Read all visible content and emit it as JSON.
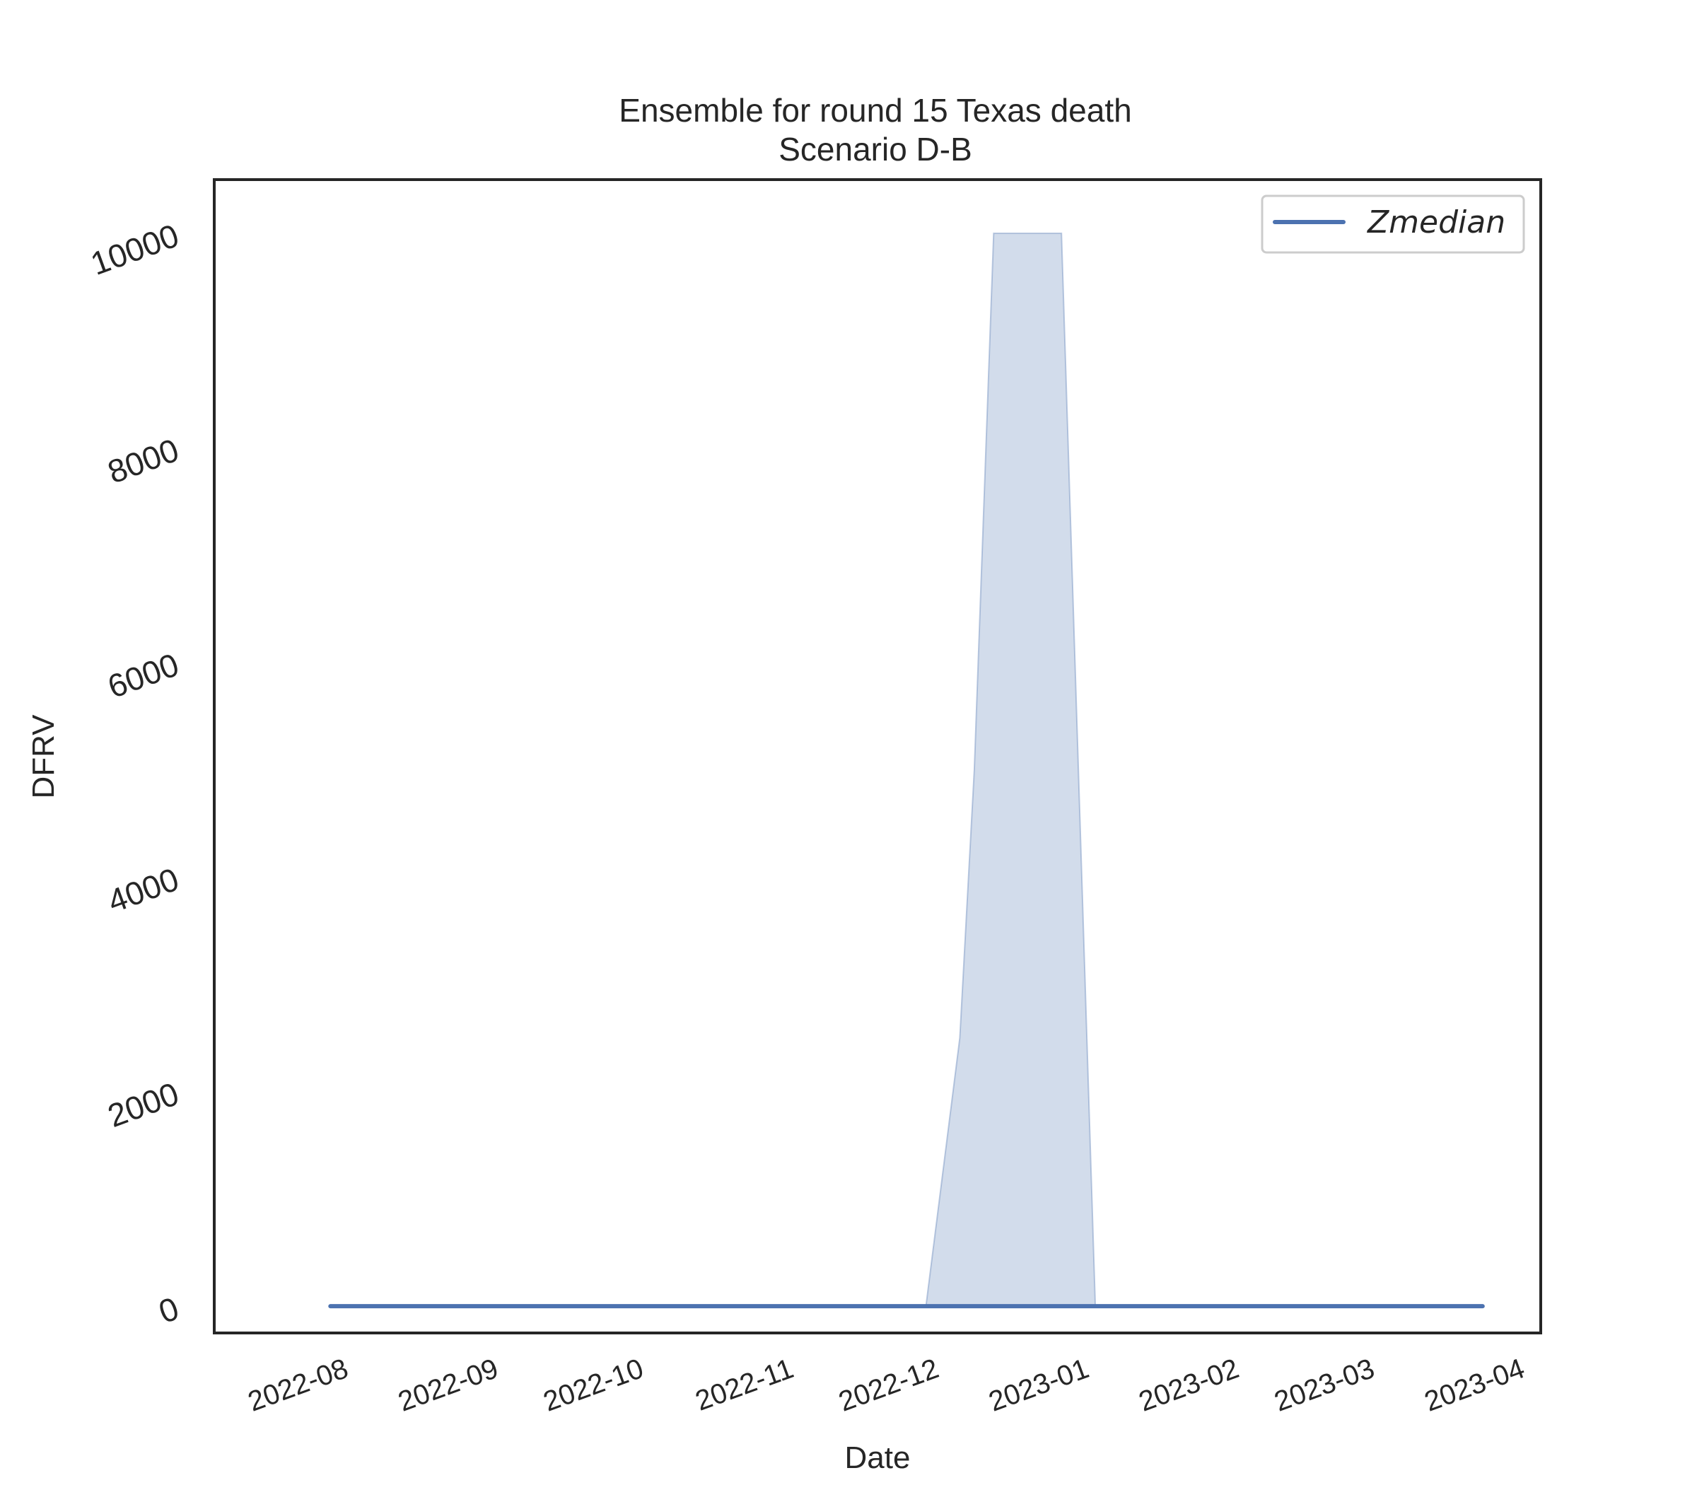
{
  "chart_data": {
    "type": "line",
    "title": "Ensemble for round 15 Texas death",
    "subtitle": "Scenario D-B",
    "xlabel": "Date",
    "ylabel": "DFRV",
    "ylim": [
      -250,
      10500
    ],
    "xlim": [
      "2022-07-06",
      "2023-04-06"
    ],
    "yticks": [
      0,
      2000,
      4000,
      6000,
      8000,
      10000
    ],
    "xticks": [
      "2022-08",
      "2022-09",
      "2022-10",
      "2022-11",
      "2022-12",
      "2023-01",
      "2023-02",
      "2023-03",
      "2023-04"
    ],
    "grid": false,
    "legend_position": "top-right",
    "series": [
      {
        "name": "Zmedian",
        "color": "#4c72b0",
        "x": [
          "2022-07-30",
          "2023-03-25"
        ],
        "y": [
          0,
          0
        ]
      }
    ],
    "band": {
      "color": "#4c72b0",
      "opacity": 0.25,
      "x": [
        "2022-07-30",
        "2022-11-30",
        "2022-12-07",
        "2022-12-10",
        "2022-12-14",
        "2022-12-28",
        "2023-01-04",
        "2023-03-25"
      ],
      "lower": [
        0,
        0,
        0,
        0,
        0,
        0,
        0,
        0
      ],
      "upper": [
        0,
        0,
        2500,
        5000,
        10000,
        10000,
        0,
        0
      ]
    }
  }
}
